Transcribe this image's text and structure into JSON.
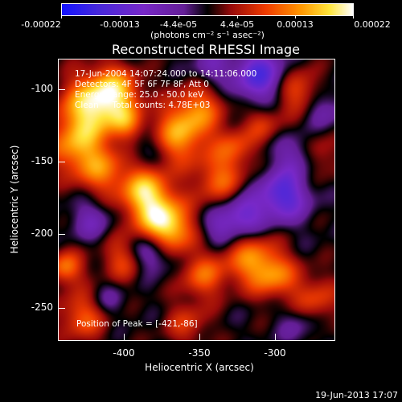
{
  "colorbar": {
    "tick_labels": [
      "-0.00022",
      "-0.00013",
      "-4.4e-05",
      "4.4e-05",
      "0.00013",
      "0.00022"
    ],
    "unit_label": "(photons cm⁻² s⁻¹ asec⁻²)"
  },
  "plot": {
    "title": "Reconstructed RHESSI Image",
    "info_lines": [
      "17-Jun-2004 14:07:24.000 to 14:11:06.000",
      "Detectors: 4F 5F 6F 7F 8F, Att 0",
      "Energy Range: 25.0 - 50.0 keV",
      "Clean     Total counts: 4.78E+03"
    ],
    "peak_text": "Position of Peak = [-421,-86]",
    "x_ticks": [
      "-400",
      "-350",
      "-300"
    ],
    "y_ticks": [
      "-100",
      "-150",
      "-200",
      "-250"
    ],
    "x_label": "Heliocentric X (arcsec)",
    "y_label": "Heliocentric Y (arcsec)",
    "colormap": "rhessi-blue-purple-red-yellow-white"
  },
  "timestamp": "19-Jun-2013 17:07"
}
